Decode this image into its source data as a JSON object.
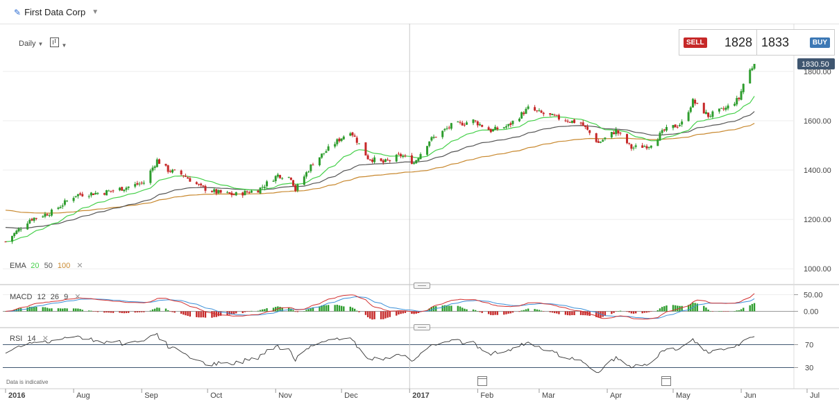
{
  "header": {
    "instrument": "First Data Corp"
  },
  "toolbar": {
    "interval": "Daily"
  },
  "quote": {
    "sell_label": "SELL",
    "sell_price": "1828",
    "buy_price": "1833",
    "buy_label": "BUY"
  },
  "last_price_tag": "1830.50",
  "footer_note": "Data is indicative",
  "indicators": {
    "ema": {
      "name": "EMA",
      "p1": "20",
      "p2": "50",
      "p3": "100"
    },
    "macd": {
      "name": "MACD",
      "p1": "12",
      "p2": "26",
      "p3": "9"
    },
    "rsi": {
      "name": "RSI",
      "p1": "14"
    }
  },
  "colors": {
    "up": "#2e9d2e",
    "down": "#c62828",
    "ema20": "#45d04a",
    "ema50": "#555555",
    "ema100": "#c8882e",
    "macd": "#d23030",
    "signal": "#3a8fd8",
    "rsi": "#333333",
    "tag_bg": "#3f5670"
  },
  "chart_data": [
    {
      "type": "candlestick",
      "title": "First Data Corp",
      "interval": "Daily",
      "y_ticks": [
        "1800.00",
        "1600.00",
        "1400.00",
        "1200.00",
        "1000.00"
      ],
      "ylim": [
        950,
        1870
      ],
      "x_ticks": [
        "2016",
        "Aug",
        "Sep",
        "Oct",
        "Nov",
        "Dec",
        "2017",
        "Feb",
        "Mar",
        "Apr",
        "May",
        "Jun",
        "Jul"
      ],
      "x_tick_dates": [
        "2016-07-01",
        "2016-08-01",
        "2016-09-01",
        "2016-10-01",
        "2016-11-01",
        "2016-12-01",
        "2017-01-01",
        "2017-02-01",
        "2017-03-01",
        "2017-04-01",
        "2017-05-01",
        "2017-06-01",
        "2017-07-01"
      ],
      "close_path": [
        [
          "2016-07-01",
          1110
        ],
        [
          "2016-07-12",
          1200
        ],
        [
          "2016-07-22",
          1230
        ],
        [
          "2016-08-02",
          1300
        ],
        [
          "2016-08-15",
          1310
        ],
        [
          "2016-08-25",
          1330
        ],
        [
          "2016-09-02",
          1350
        ],
        [
          "2016-09-08",
          1440
        ],
        [
          "2016-09-13",
          1400
        ],
        [
          "2016-09-20",
          1380
        ],
        [
          "2016-09-28",
          1330
        ],
        [
          "2016-10-05",
          1310
        ],
        [
          "2016-10-13",
          1300
        ],
        [
          "2016-10-24",
          1320
        ],
        [
          "2016-11-02",
          1380
        ],
        [
          "2016-11-08",
          1370
        ],
        [
          "2016-11-10",
          1320
        ],
        [
          "2016-11-18",
          1430
        ],
        [
          "2016-11-28",
          1510
        ],
        [
          "2016-12-05",
          1560
        ],
        [
          "2016-12-13",
          1450
        ],
        [
          "2016-12-20",
          1430
        ],
        [
          "2016-12-28",
          1460
        ],
        [
          "2017-01-03",
          1430
        ],
        [
          "2017-01-10",
          1520
        ],
        [
          "2017-01-20",
          1580
        ],
        [
          "2017-01-30",
          1600
        ],
        [
          "2017-02-07",
          1560
        ],
        [
          "2017-02-15",
          1580
        ],
        [
          "2017-02-24",
          1650
        ],
        [
          "2017-03-02",
          1630
        ],
        [
          "2017-03-10",
          1610
        ],
        [
          "2017-03-20",
          1590
        ],
        [
          "2017-03-28",
          1510
        ],
        [
          "2017-04-05",
          1560
        ],
        [
          "2017-04-12",
          1490
        ],
        [
          "2017-04-20",
          1500
        ],
        [
          "2017-04-27",
          1560
        ],
        [
          "2017-05-05",
          1590
        ],
        [
          "2017-05-10",
          1680
        ],
        [
          "2017-05-17",
          1620
        ],
        [
          "2017-05-25",
          1650
        ],
        [
          "2017-05-31",
          1690
        ],
        [
          "2017-06-03",
          1780
        ],
        [
          "2017-06-07",
          1830
        ]
      ],
      "last_price": 1830.5,
      "ema_periods": [
        20,
        50,
        100
      ]
    },
    {
      "type": "line",
      "title": "MACD 12 26 9",
      "y_ticks": [
        "50.00",
        "0.00"
      ],
      "ylim": [
        -45,
        72
      ],
      "series": [
        "MACD",
        "Signal",
        "Histogram"
      ]
    },
    {
      "type": "line",
      "title": "RSI 14",
      "y_ticks": [
        "70",
        "30"
      ],
      "levels": [
        70,
        30
      ],
      "ylim": [
        10,
        90
      ]
    }
  ]
}
